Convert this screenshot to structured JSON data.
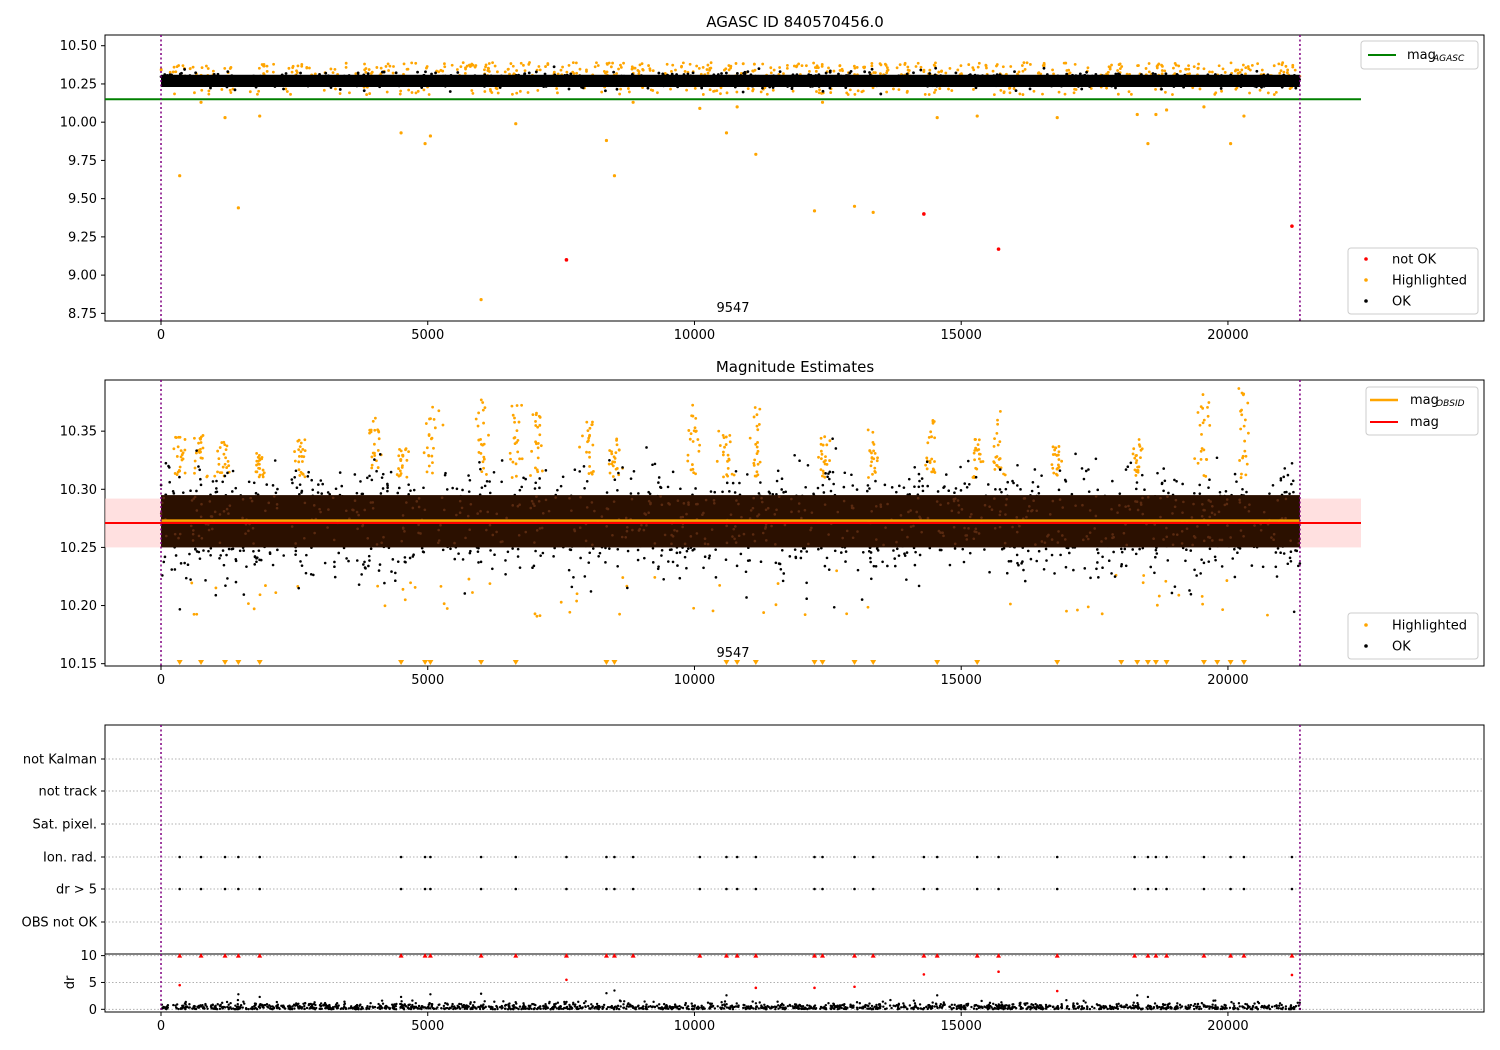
{
  "chart_data": [
    {
      "type": "scatter",
      "title": "AGASC ID 840570456.0",
      "xlabel": "",
      "ylabel": "",
      "xlim": [
        -1050,
        24800
      ],
      "ylim": [
        8.7,
        10.57
      ],
      "x_ticks": [
        "0",
        "5000",
        "10000",
        "15000",
        "20000"
      ],
      "y_ticks": [
        "10.50",
        "10.25",
        "10.00",
        "9.75",
        "9.50",
        "9.25",
        "9.00",
        "8.75"
      ],
      "annotation": "9547",
      "vlines_x": [
        0,
        21350
      ],
      "legend_upper": [
        "mag",
        "AGASC"
      ],
      "legend_lower": [
        "not OK",
        "Highlighted",
        "OK"
      ],
      "mag_agasc": 10.15,
      "ok_band": {
        "x_range": [
          0,
          21350
        ],
        "center": 10.275,
        "half_width": 0.04
      },
      "not_ok_points": [
        {
          "x": 7600,
          "y": 9.1
        },
        {
          "x": 14300,
          "y": 9.4
        },
        {
          "x": 15700,
          "y": 9.17
        },
        {
          "x": 21200,
          "y": 9.32
        }
      ],
      "highlighted_points": [
        {
          "x": 350,
          "y": 9.65
        },
        {
          "x": 750,
          "y": 10.13
        },
        {
          "x": 1200,
          "y": 10.03
        },
        {
          "x": 1450,
          "y": 9.44
        },
        {
          "x": 1850,
          "y": 10.04
        },
        {
          "x": 4500,
          "y": 9.93
        },
        {
          "x": 4950,
          "y": 9.86
        },
        {
          "x": 5050,
          "y": 9.91
        },
        {
          "x": 6000,
          "y": 8.84
        },
        {
          "x": 6650,
          "y": 9.99
        },
        {
          "x": 8350,
          "y": 9.88
        },
        {
          "x": 8500,
          "y": 9.65
        },
        {
          "x": 8850,
          "y": 10.13
        },
        {
          "x": 10100,
          "y": 10.09
        },
        {
          "x": 10600,
          "y": 9.93
        },
        {
          "x": 10800,
          "y": 10.1
        },
        {
          "x": 11150,
          "y": 9.79
        },
        {
          "x": 12250,
          "y": 9.42
        },
        {
          "x": 12400,
          "y": 10.13
        },
        {
          "x": 13000,
          "y": 9.45
        },
        {
          "x": 13350,
          "y": 9.41
        },
        {
          "x": 14550,
          "y": 10.03
        },
        {
          "x": 15300,
          "y": 10.04
        },
        {
          "x": 16800,
          "y": 10.03
        },
        {
          "x": 18300,
          "y": 10.05
        },
        {
          "x": 18500,
          "y": 9.86
        },
        {
          "x": 18650,
          "y": 10.05
        },
        {
          "x": 18850,
          "y": 10.08
        },
        {
          "x": 19550,
          "y": 10.1
        },
        {
          "x": 20050,
          "y": 9.86
        },
        {
          "x": 20300,
          "y": 10.04
        }
      ]
    },
    {
      "type": "scatter",
      "title": "Magnitude Estimates",
      "xlabel": "",
      "ylabel": "",
      "xlim": [
        -1050,
        24800
      ],
      "ylim": [
        10.148,
        10.394
      ],
      "x_ticks": [
        "0",
        "5000",
        "10000",
        "15000",
        "20000"
      ],
      "y_ticks": [
        "10.35",
        "10.30",
        "10.25",
        "10.20",
        "10.15"
      ],
      "annotation": "9547",
      "vlines_x": [
        0,
        21350
      ],
      "legend_upper": [
        "mag",
        "OBSID",
        "mag"
      ],
      "legend_lower": [
        "Highlighted",
        "OK"
      ],
      "mag_obsid": 10.273,
      "mag": 10.271,
      "mag_band": [
        10.25,
        10.292
      ],
      "ok_band": {
        "x_range": [
          0,
          21350
        ],
        "core": [
          10.25,
          10.295
        ],
        "full": [
          10.225,
          10.33
        ]
      },
      "highlighted_clusters_x": [
        350,
        750,
        1200,
        1850,
        2650,
        4000,
        4500,
        5050,
        6000,
        6650,
        7050,
        8000,
        8500,
        10000,
        10600,
        11150,
        12400,
        13350,
        14450,
        15300,
        15700,
        16800,
        18300,
        19550,
        20300
      ],
      "lower_triangles_x": [
        350,
        750,
        1200,
        1450,
        1850,
        4500,
        4950,
        5050,
        6000,
        6650,
        8350,
        8500,
        10600,
        10800,
        11150,
        12250,
        12400,
        13000,
        13350,
        14550,
        15300,
        16800,
        18000,
        18300,
        18500,
        18650,
        18850,
        19550,
        19800,
        20050,
        20300
      ]
    },
    {
      "type": "scatter",
      "title": "",
      "xlabel": "",
      "ylabel": "",
      "xlim": [
        -1050,
        24800
      ],
      "categories": [
        "not Kalman",
        "not track",
        "Sat. pixel.",
        "Ion. rad.",
        "dr > 5",
        "OBS not OK"
      ],
      "vlines_x": [
        0,
        21350
      ],
      "flag_x": [
        350,
        750,
        1200,
        1450,
        1850,
        4500,
        4950,
        5050,
        6000,
        6650,
        7600,
        8350,
        8500,
        8850,
        10100,
        10600,
        10800,
        11150,
        12250,
        12400,
        13000,
        13350,
        14300,
        14550,
        15300,
        15700,
        16800,
        18250,
        18500,
        18650,
        18850,
        19550,
        20050,
        20300,
        21200
      ]
    },
    {
      "type": "scatter",
      "title": "",
      "xlabel": "",
      "ylabel": "dr",
      "xlim": [
        -1050,
        24800
      ],
      "ylim": [
        -0.5,
        10.3
      ],
      "y_ticks": [
        "10",
        "5",
        "0"
      ],
      "x_ticks": [
        "0",
        "5000",
        "10000",
        "15000",
        "20000"
      ],
      "vlines_x": [
        0,
        21350
      ],
      "capped_red_x": [
        350,
        750,
        1200,
        1450,
        1850,
        4500,
        4950,
        5050,
        6000,
        6650,
        7600,
        8350,
        8500,
        8850,
        10100,
        10600,
        10800,
        11150,
        12250,
        12400,
        13000,
        13350,
        14300,
        14550,
        15300,
        15700,
        16800,
        18250,
        18500,
        18650,
        18850,
        19550,
        20050,
        20300,
        21200
      ],
      "red_points": [
        {
          "x": 350,
          "y": 4.5
        },
        {
          "x": 7600,
          "y": 5.5
        },
        {
          "x": 11150,
          "y": 4
        },
        {
          "x": 12250,
          "y": 4
        },
        {
          "x": 13000,
          "y": 4.2
        },
        {
          "x": 14300,
          "y": 6.5
        },
        {
          "x": 15700,
          "y": 7
        },
        {
          "x": 16800,
          "y": 3.4
        },
        {
          "x": 21200,
          "y": 6.4
        }
      ],
      "scattered_points": [
        {
          "x": 1450,
          "y": 2.8
        },
        {
          "x": 4500,
          "y": 2.3
        },
        {
          "x": 5050,
          "y": 2.8
        },
        {
          "x": 6000,
          "y": 2.9
        },
        {
          "x": 8350,
          "y": 3
        },
        {
          "x": 8500,
          "y": 3.5
        },
        {
          "x": 10600,
          "y": 2.6
        },
        {
          "x": 14550,
          "y": 2.6
        },
        {
          "x": 18300,
          "y": 2.6
        },
        {
          "x": 18500,
          "y": 2.3
        },
        {
          "x": 1850,
          "y": 2.3
        }
      ]
    }
  ]
}
